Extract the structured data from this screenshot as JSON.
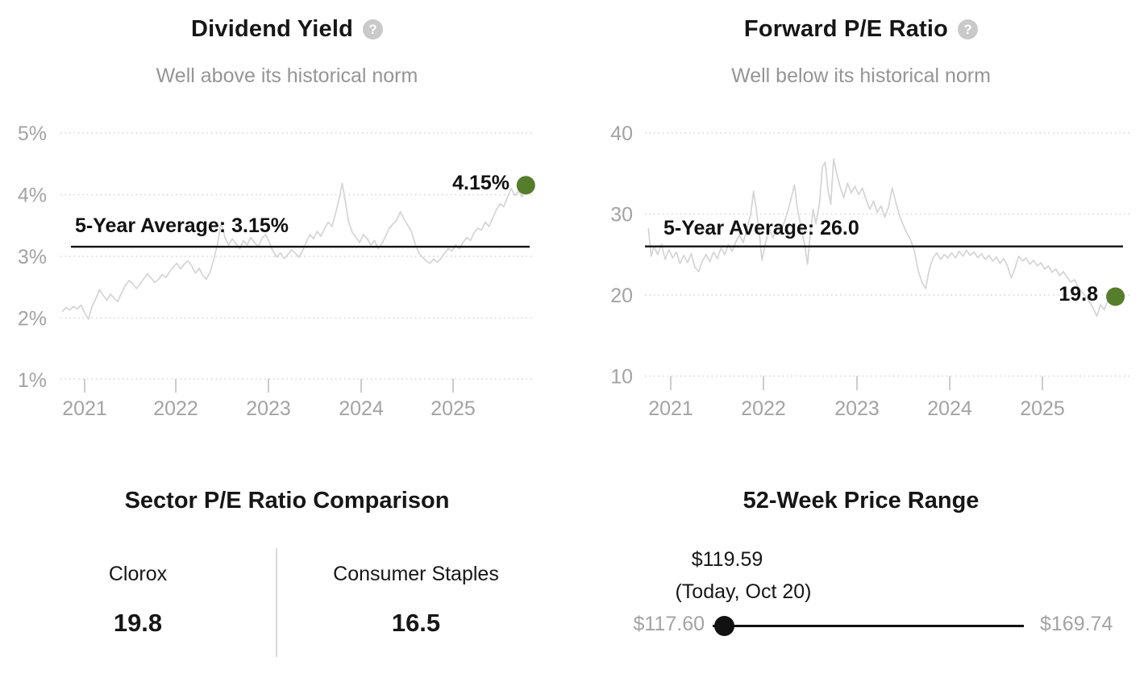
{
  "colors": {
    "accent_green": "#567d2b",
    "series_gray": "#d4d4d4",
    "average_black": "#111111"
  },
  "icons": {
    "help_glyph": "?"
  },
  "charts": {
    "dividend_yield": {
      "title": "Dividend Yield",
      "subtitle": "Well above its historical norm",
      "average_label": "5-Year Average: 3.15%",
      "current_label": "4.15%",
      "y_ticks": [
        "5%",
        "4%",
        "3%",
        "2%",
        "1%"
      ],
      "x_ticks": [
        "2021",
        "2022",
        "2023",
        "2024",
        "2025"
      ]
    },
    "forward_pe": {
      "title": "Forward P/E Ratio",
      "subtitle": "Well below its historical norm",
      "average_label": "5-Year Average: 26.0",
      "current_label": "19.8",
      "y_ticks": [
        "40",
        "30",
        "20",
        "10"
      ],
      "x_ticks": [
        "2021",
        "2022",
        "2023",
        "2024",
        "2025"
      ]
    }
  },
  "chart_data": [
    {
      "type": "line",
      "title": "Dividend Yield",
      "subtitle": "Well above its historical norm",
      "unit": "%",
      "x_tick_labels": [
        "2021",
        "2022",
        "2023",
        "2024",
        "2025"
      ],
      "y_tick_values": [
        1,
        2,
        3,
        4,
        5
      ],
      "xlim": [
        2020.76,
        2025.82
      ],
      "ylim": [
        1,
        5
      ],
      "grid": "dotted-horizontal",
      "five_year_average": 3.15,
      "current_value": 4.15,
      "points": [
        [
          2020.76,
          2.1
        ],
        [
          2020.8,
          2.16
        ],
        [
          2020.84,
          2.12
        ],
        [
          2020.88,
          2.18
        ],
        [
          2020.92,
          2.14
        ],
        [
          2020.96,
          2.2
        ],
        [
          2021.0,
          2.08
        ],
        [
          2021.04,
          1.97
        ],
        [
          2021.08,
          2.18
        ],
        [
          2021.12,
          2.3
        ],
        [
          2021.16,
          2.45
        ],
        [
          2021.2,
          2.36
        ],
        [
          2021.24,
          2.28
        ],
        [
          2021.28,
          2.38
        ],
        [
          2021.32,
          2.31
        ],
        [
          2021.36,
          2.26
        ],
        [
          2021.4,
          2.4
        ],
        [
          2021.44,
          2.52
        ],
        [
          2021.48,
          2.6
        ],
        [
          2021.52,
          2.55
        ],
        [
          2021.56,
          2.47
        ],
        [
          2021.6,
          2.54
        ],
        [
          2021.64,
          2.63
        ],
        [
          2021.68,
          2.71
        ],
        [
          2021.72,
          2.64
        ],
        [
          2021.76,
          2.57
        ],
        [
          2021.8,
          2.62
        ],
        [
          2021.84,
          2.7
        ],
        [
          2021.88,
          2.65
        ],
        [
          2021.92,
          2.74
        ],
        [
          2021.96,
          2.82
        ],
        [
          2022.0,
          2.88
        ],
        [
          2022.04,
          2.79
        ],
        [
          2022.08,
          2.87
        ],
        [
          2022.12,
          2.92
        ],
        [
          2022.16,
          2.84
        ],
        [
          2022.2,
          2.72
        ],
        [
          2022.24,
          2.8
        ],
        [
          2022.28,
          2.68
        ],
        [
          2022.32,
          2.62
        ],
        [
          2022.36,
          2.74
        ],
        [
          2022.4,
          2.95
        ],
        [
          2022.44,
          3.2
        ],
        [
          2022.48,
          3.55
        ],
        [
          2022.5,
          3.42
        ],
        [
          2022.52,
          3.3
        ],
        [
          2022.56,
          3.18
        ],
        [
          2022.6,
          3.28
        ],
        [
          2022.64,
          3.2
        ],
        [
          2022.68,
          3.12
        ],
        [
          2022.72,
          3.25
        ],
        [
          2022.76,
          3.18
        ],
        [
          2022.8,
          3.3
        ],
        [
          2022.84,
          3.22
        ],
        [
          2022.88,
          3.15
        ],
        [
          2022.92,
          3.28
        ],
        [
          2022.96,
          3.35
        ],
        [
          2023.0,
          3.22
        ],
        [
          2023.04,
          3.08
        ],
        [
          2023.08,
          2.98
        ],
        [
          2023.12,
          3.05
        ],
        [
          2023.16,
          2.96
        ],
        [
          2023.2,
          3.02
        ],
        [
          2023.24,
          3.1
        ],
        [
          2023.28,
          3.05
        ],
        [
          2023.32,
          2.98
        ],
        [
          2023.36,
          3.08
        ],
        [
          2023.4,
          3.22
        ],
        [
          2023.44,
          3.35
        ],
        [
          2023.48,
          3.28
        ],
        [
          2023.52,
          3.4
        ],
        [
          2023.56,
          3.32
        ],
        [
          2023.6,
          3.45
        ],
        [
          2023.64,
          3.55
        ],
        [
          2023.68,
          3.48
        ],
        [
          2023.72,
          3.7
        ],
        [
          2023.76,
          3.95
        ],
        [
          2023.79,
          4.18
        ],
        [
          2023.82,
          3.92
        ],
        [
          2023.86,
          3.55
        ],
        [
          2023.9,
          3.38
        ],
        [
          2023.94,
          3.3
        ],
        [
          2023.98,
          3.22
        ],
        [
          2024.02,
          3.35
        ],
        [
          2024.06,
          3.28
        ],
        [
          2024.1,
          3.18
        ],
        [
          2024.14,
          3.25
        ],
        [
          2024.18,
          3.12
        ],
        [
          2024.22,
          3.2
        ],
        [
          2024.26,
          3.32
        ],
        [
          2024.3,
          3.45
        ],
        [
          2024.34,
          3.52
        ],
        [
          2024.38,
          3.58
        ],
        [
          2024.42,
          3.72
        ],
        [
          2024.46,
          3.6
        ],
        [
          2024.5,
          3.5
        ],
        [
          2024.54,
          3.4
        ],
        [
          2024.58,
          3.2
        ],
        [
          2024.62,
          3.05
        ],
        [
          2024.66,
          2.98
        ],
        [
          2024.7,
          2.92
        ],
        [
          2024.74,
          2.88
        ],
        [
          2024.78,
          2.95
        ],
        [
          2024.82,
          2.9
        ],
        [
          2024.86,
          2.96
        ],
        [
          2024.9,
          3.05
        ],
        [
          2024.94,
          3.12
        ],
        [
          2024.98,
          3.08
        ],
        [
          2025.02,
          3.18
        ],
        [
          2025.06,
          3.12
        ],
        [
          2025.1,
          3.22
        ],
        [
          2025.14,
          3.3
        ],
        [
          2025.18,
          3.25
        ],
        [
          2025.22,
          3.38
        ],
        [
          2025.26,
          3.45
        ],
        [
          2025.3,
          3.42
        ],
        [
          2025.34,
          3.55
        ],
        [
          2025.38,
          3.48
        ],
        [
          2025.42,
          3.62
        ],
        [
          2025.46,
          3.75
        ],
        [
          2025.5,
          3.85
        ],
        [
          2025.54,
          3.8
        ],
        [
          2025.58,
          3.95
        ],
        [
          2025.62,
          4.1
        ],
        [
          2025.66,
          3.98
        ],
        [
          2025.7,
          4.05
        ],
        [
          2025.74,
          3.96
        ],
        [
          2025.78,
          4.15
        ]
      ]
    },
    {
      "type": "line",
      "title": "Forward P/E Ratio",
      "subtitle": "Well below its historical norm",
      "unit": "x",
      "x_tick_labels": [
        "2021",
        "2022",
        "2023",
        "2024",
        "2025"
      ],
      "y_tick_values": [
        10,
        20,
        30,
        40
      ],
      "xlim": [
        2020.76,
        2025.82
      ],
      "ylim": [
        10,
        40
      ],
      "grid": "dotted-horizontal",
      "five_year_average": 26.0,
      "current_value": 19.8,
      "points": [
        [
          2020.76,
          28.2
        ],
        [
          2020.79,
          24.8
        ],
        [
          2020.82,
          26.0
        ],
        [
          2020.86,
          25.0
        ],
        [
          2020.9,
          26.3
        ],
        [
          2020.94,
          24.4
        ],
        [
          2020.98,
          25.6
        ],
        [
          2021.02,
          24.6
        ],
        [
          2021.06,
          25.3
        ],
        [
          2021.1,
          23.9
        ],
        [
          2021.14,
          24.9
        ],
        [
          2021.18,
          24.0
        ],
        [
          2021.22,
          25.1
        ],
        [
          2021.26,
          23.4
        ],
        [
          2021.3,
          22.9
        ],
        [
          2021.34,
          24.2
        ],
        [
          2021.38,
          25.0
        ],
        [
          2021.42,
          24.1
        ],
        [
          2021.46,
          25.3
        ],
        [
          2021.5,
          24.5
        ],
        [
          2021.54,
          25.8
        ],
        [
          2021.58,
          25.0
        ],
        [
          2021.62,
          26.2
        ],
        [
          2021.66,
          25.4
        ],
        [
          2021.7,
          26.6
        ],
        [
          2021.74,
          27.4
        ],
        [
          2021.78,
          26.5
        ],
        [
          2021.82,
          28.2
        ],
        [
          2021.86,
          30.0
        ],
        [
          2021.89,
          32.8
        ],
        [
          2021.92,
          30.5
        ],
        [
          2021.95,
          28.0
        ],
        [
          2021.98,
          24.3
        ],
        [
          2022.02,
          26.5
        ],
        [
          2022.06,
          28.2
        ],
        [
          2022.1,
          27.0
        ],
        [
          2022.14,
          28.8
        ],
        [
          2022.18,
          27.6
        ],
        [
          2022.22,
          29.0
        ],
        [
          2022.26,
          30.4
        ],
        [
          2022.3,
          32.2
        ],
        [
          2022.33,
          33.6
        ],
        [
          2022.36,
          30.8
        ],
        [
          2022.4,
          28.4
        ],
        [
          2022.44,
          26.2
        ],
        [
          2022.47,
          23.8
        ],
        [
          2022.5,
          27.5
        ],
        [
          2022.53,
          30.6
        ],
        [
          2022.56,
          28.8
        ],
        [
          2022.6,
          31.4
        ],
        [
          2022.63,
          35.8
        ],
        [
          2022.66,
          36.4
        ],
        [
          2022.69,
          33.0
        ],
        [
          2022.72,
          31.2
        ],
        [
          2022.75,
          36.8
        ],
        [
          2022.78,
          35.2
        ],
        [
          2022.82,
          33.4
        ],
        [
          2022.86,
          32.0
        ],
        [
          2022.9,
          33.8
        ],
        [
          2022.94,
          32.6
        ],
        [
          2022.98,
          33.4
        ],
        [
          2023.02,
          32.4
        ],
        [
          2023.06,
          33.2
        ],
        [
          2023.1,
          31.8
        ],
        [
          2023.14,
          30.6
        ],
        [
          2023.18,
          31.6
        ],
        [
          2023.22,
          30.2
        ],
        [
          2023.26,
          31.0
        ],
        [
          2023.3,
          29.6
        ],
        [
          2023.34,
          30.8
        ],
        [
          2023.38,
          33.2
        ],
        [
          2023.42,
          31.4
        ],
        [
          2023.46,
          29.8
        ],
        [
          2023.5,
          28.6
        ],
        [
          2023.54,
          27.6
        ],
        [
          2023.58,
          26.8
        ],
        [
          2023.62,
          25.4
        ],
        [
          2023.66,
          23.0
        ],
        [
          2023.7,
          21.6
        ],
        [
          2023.74,
          20.8
        ],
        [
          2023.78,
          23.2
        ],
        [
          2023.82,
          24.6
        ],
        [
          2023.86,
          25.2
        ],
        [
          2023.9,
          24.4
        ],
        [
          2023.94,
          25.0
        ],
        [
          2023.98,
          24.6
        ],
        [
          2024.02,
          25.2
        ],
        [
          2024.06,
          24.6
        ],
        [
          2024.1,
          25.4
        ],
        [
          2024.14,
          24.8
        ],
        [
          2024.18,
          25.5
        ],
        [
          2024.22,
          24.9
        ],
        [
          2024.26,
          25.3
        ],
        [
          2024.3,
          24.6
        ],
        [
          2024.34,
          25.1
        ],
        [
          2024.38,
          24.4
        ],
        [
          2024.42,
          24.9
        ],
        [
          2024.46,
          24.2
        ],
        [
          2024.5,
          24.7
        ],
        [
          2024.54,
          23.9
        ],
        [
          2024.58,
          24.5
        ],
        [
          2024.62,
          23.6
        ],
        [
          2024.66,
          22.1
        ],
        [
          2024.7,
          23.3
        ],
        [
          2024.74,
          24.8
        ],
        [
          2024.78,
          24.2
        ],
        [
          2024.82,
          24.6
        ],
        [
          2024.86,
          23.8
        ],
        [
          2024.9,
          24.3
        ],
        [
          2024.94,
          23.6
        ],
        [
          2024.98,
          24.0
        ],
        [
          2025.02,
          23.2
        ],
        [
          2025.06,
          23.6
        ],
        [
          2025.1,
          22.8
        ],
        [
          2025.14,
          23.2
        ],
        [
          2025.18,
          22.4
        ],
        [
          2025.22,
          22.9
        ],
        [
          2025.26,
          22.2
        ],
        [
          2025.3,
          21.6
        ],
        [
          2025.34,
          21.9
        ],
        [
          2025.38,
          21.0
        ],
        [
          2025.42,
          20.4
        ],
        [
          2025.46,
          19.8
        ],
        [
          2025.5,
          19.2
        ],
        [
          2025.54,
          18.4
        ],
        [
          2025.58,
          17.4
        ],
        [
          2025.62,
          18.8
        ],
        [
          2025.66,
          18.2
        ],
        [
          2025.7,
          19.4
        ],
        [
          2025.74,
          18.9
        ],
        [
          2025.78,
          19.8
        ]
      ]
    }
  ],
  "sector_comparison": {
    "title": "Sector P/E Ratio Comparison",
    "items": [
      {
        "label": "Clorox",
        "value": "19.8"
      },
      {
        "label": "Consumer Staples",
        "value": "16.5"
      }
    ]
  },
  "price_range": {
    "title": "52-Week Price Range",
    "current_label": "$119.59",
    "current_date": "(Today, Oct 20)",
    "low_label": "$117.60",
    "high_label": "$169.74",
    "low_value": 117.6,
    "high_value": 169.74,
    "current_value": 119.59
  }
}
